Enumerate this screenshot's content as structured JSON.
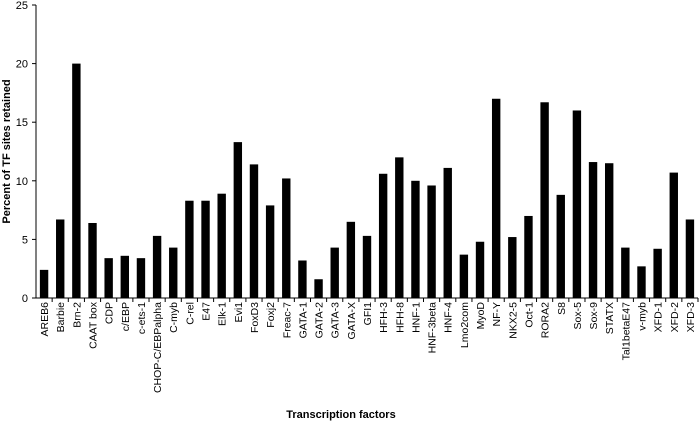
{
  "chart_data": {
    "type": "bar",
    "title": "",
    "xlabel": "Transcription factors",
    "ylabel": "Percent of TF sites retained",
    "ylim": [
      0,
      25
    ],
    "yticks": [
      0,
      5,
      10,
      15,
      20,
      25
    ],
    "grid": false,
    "legend": "none",
    "bar_color": "#000000",
    "categories": [
      "AREB6",
      "Barbie",
      "Brn-2",
      "CAAT box",
      "CDP",
      "c/EBP",
      "c-ets-1",
      "CHOP-C/EBPalpha",
      "C-myb",
      "C-rel",
      "E47",
      "Elk-1",
      "Evi1",
      "FoxD3",
      "Foxj2",
      "Freac-7",
      "GATA-1",
      "GATA-2",
      "GATA-3",
      "GATA-X",
      "GFI1",
      "HFH-3",
      "HFH-8",
      "HNF-1",
      "HNF-3beta",
      "HNF-4",
      "Lmo2com",
      "MyoD",
      "NF-Y",
      "NKX2-5",
      "Oct-1",
      "RORA2",
      "S8",
      "Sox-5",
      "Sox-9",
      "STATX",
      "Tal1betaE47",
      "v-myb",
      "XFD-1",
      "XFD-2",
      "XFD-3"
    ],
    "values": [
      2.4,
      6.7,
      20.0,
      6.4,
      3.4,
      3.6,
      3.4,
      5.3,
      4.3,
      8.3,
      8.3,
      8.9,
      13.3,
      11.4,
      7.9,
      10.2,
      3.2,
      1.6,
      4.3,
      6.5,
      5.3,
      10.6,
      12.0,
      10.0,
      9.6,
      11.1,
      3.7,
      4.8,
      17.0,
      5.2,
      7.0,
      16.7,
      8.8,
      16.0,
      11.6,
      11.5,
      4.3,
      2.7,
      4.2,
      10.7,
      6.7
    ]
  }
}
